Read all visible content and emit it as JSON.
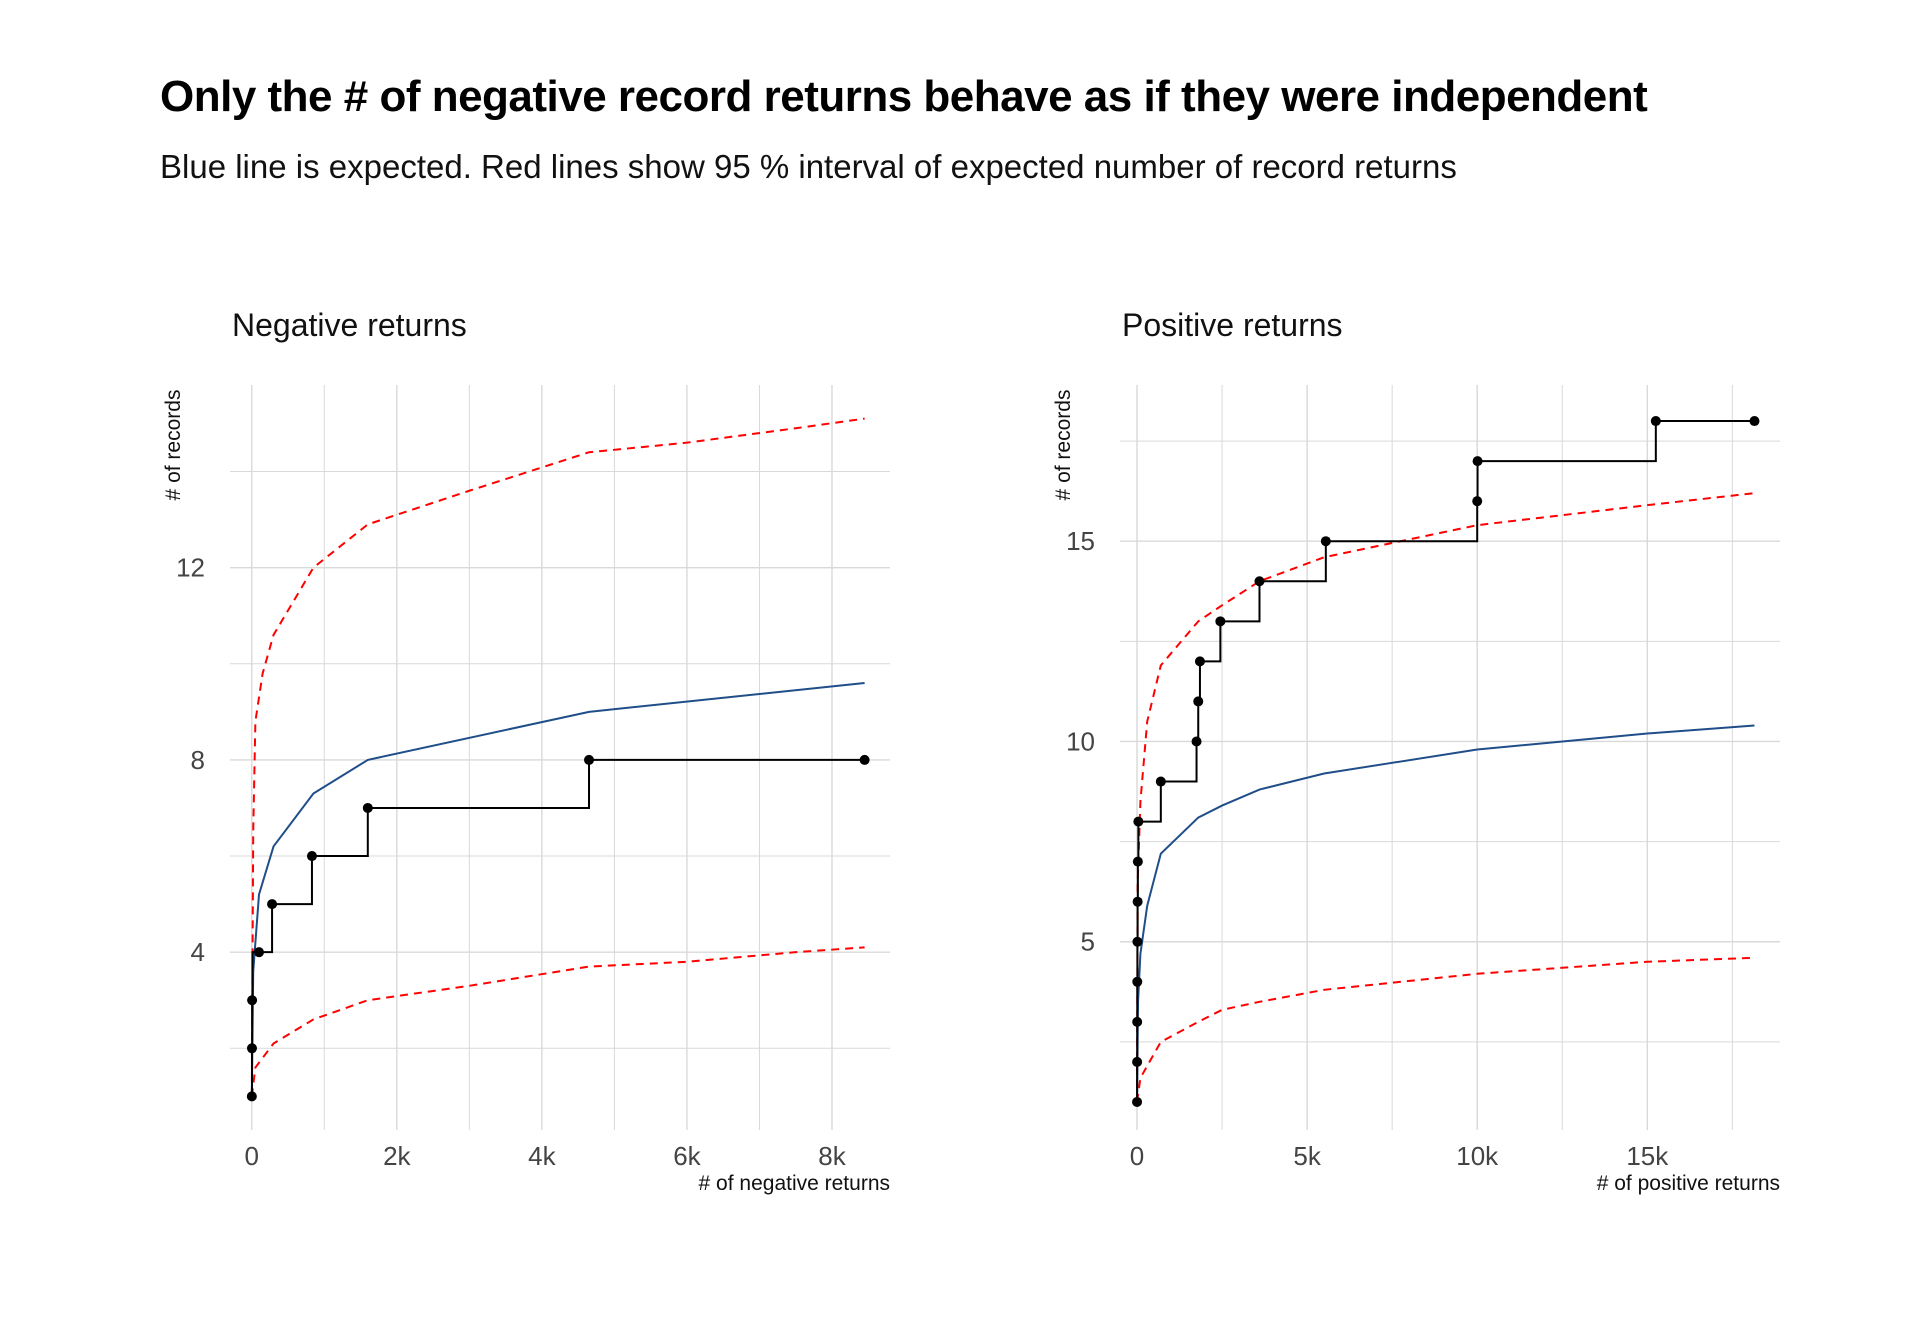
{
  "title": "Only the # of negative record returns behave as if they were independent",
  "subtitle": "Blue line is expected. Red lines show 95 % interval of expected number of record returns",
  "colors": {
    "observed": "#000000",
    "expected": "#1f4e89",
    "interval": "#ff0000",
    "grid": "#d9d9d9"
  },
  "chart_data": [
    {
      "type": "line",
      "title": "Negative returns",
      "xlabel": "# of negative returns",
      "ylabel": "# of records",
      "xlim": [
        -300,
        8800
      ],
      "ylim": [
        0.3,
        15.8
      ],
      "xticks": [
        0,
        2000,
        4000,
        6000,
        8000
      ],
      "xtick_labels": [
        "0",
        "2k",
        "4k",
        "6k",
        "8k"
      ],
      "yticks": [
        4,
        8,
        12
      ],
      "ytick_labels": [
        "4",
        "8",
        "12"
      ],
      "grid": true,
      "observed": {
        "x": [
          1,
          3,
          5,
          10,
          100,
          280,
          830,
          1600,
          4650,
          8450
        ],
        "y": [
          1,
          2,
          3,
          4,
          4,
          5,
          6,
          7,
          8,
          8
        ],
        "points_x": [
          1,
          3,
          5,
          100,
          280,
          830,
          1600,
          4650,
          8450
        ],
        "points_y": [
          1,
          2,
          3,
          4,
          5,
          6,
          7,
          8,
          8
        ]
      },
      "expected": {
        "x": [
          1,
          20,
          100,
          300,
          850,
          1600,
          4650,
          8450
        ],
        "y": [
          1,
          3.6,
          5.2,
          6.2,
          7.3,
          8.0,
          9.0,
          9.6
        ]
      },
      "upper": {
        "x": [
          1,
          20,
          50,
          150,
          300,
          850,
          1600,
          3000,
          4650,
          6000,
          7500,
          8450
        ],
        "y": [
          1,
          6.5,
          8.8,
          9.8,
          10.6,
          12.0,
          12.9,
          13.6,
          14.4,
          14.6,
          14.9,
          15.1
        ],
        "dashed": true
      },
      "lower": {
        "x": [
          1,
          50,
          300,
          850,
          1600,
          3000,
          4650,
          6000,
          7500,
          8450
        ],
        "y": [
          1,
          1.6,
          2.1,
          2.6,
          3.0,
          3.3,
          3.7,
          3.8,
          4.0,
          4.1
        ],
        "dashed": true
      }
    },
    {
      "type": "line",
      "title": "Positive returns",
      "xlabel": "# of positive returns",
      "ylabel": "# of records",
      "xlim": [
        -500,
        18900
      ],
      "ylim": [
        0.3,
        18.9
      ],
      "xticks": [
        0,
        5000,
        10000,
        15000
      ],
      "xtick_labels": [
        "0",
        "5k",
        "10k",
        "15k"
      ],
      "yticks": [
        5,
        10,
        15
      ],
      "ytick_labels": [
        "5",
        "10",
        "15"
      ],
      "grid": true,
      "observed": {
        "x": [
          1,
          3,
          5,
          8,
          12,
          18,
          25,
          40,
          700,
          1750,
          1800,
          1850,
          2450,
          3600,
          5550,
          10000,
          10010,
          15250,
          18150
        ],
        "y": [
          1,
          2,
          3,
          4,
          5,
          6,
          7,
          8,
          9,
          10,
          11,
          12,
          13,
          14,
          15,
          16,
          17,
          18,
          18
        ],
        "points_x": [
          1,
          3,
          5,
          8,
          12,
          18,
          25,
          40,
          700,
          1750,
          1800,
          1850,
          2450,
          3600,
          5550,
          10000,
          10010,
          15250,
          18150
        ],
        "points_y": [
          1,
          2,
          3,
          4,
          5,
          6,
          7,
          8,
          9,
          10,
          11,
          12,
          13,
          14,
          15,
          16,
          17,
          18,
          18
        ]
      },
      "expected": {
        "x": [
          1,
          30,
          100,
          300,
          700,
          1800,
          2500,
          3600,
          5500,
          10000,
          15000,
          18150
        ],
        "y": [
          1,
          3.5,
          4.7,
          5.9,
          7.2,
          8.1,
          8.4,
          8.8,
          9.2,
          9.8,
          10.2,
          10.4
        ],
        "dashed": false
      },
      "upper": {
        "x": [
          1,
          20,
          100,
          300,
          700,
          1800,
          2500,
          3600,
          5500,
          10000,
          15000,
          18150
        ],
        "y": [
          1,
          6.5,
          8.5,
          10.5,
          11.9,
          13.0,
          13.4,
          14.0,
          14.6,
          15.4,
          15.9,
          16.2
        ],
        "dashed": true
      },
      "lower": {
        "x": [
          1,
          100,
          700,
          1800,
          2500,
          3600,
          5500,
          10000,
          15000,
          18150
        ],
        "y": [
          1,
          1.6,
          2.5,
          3.0,
          3.3,
          3.5,
          3.8,
          4.2,
          4.5,
          4.6
        ],
        "dashed": true
      }
    }
  ]
}
